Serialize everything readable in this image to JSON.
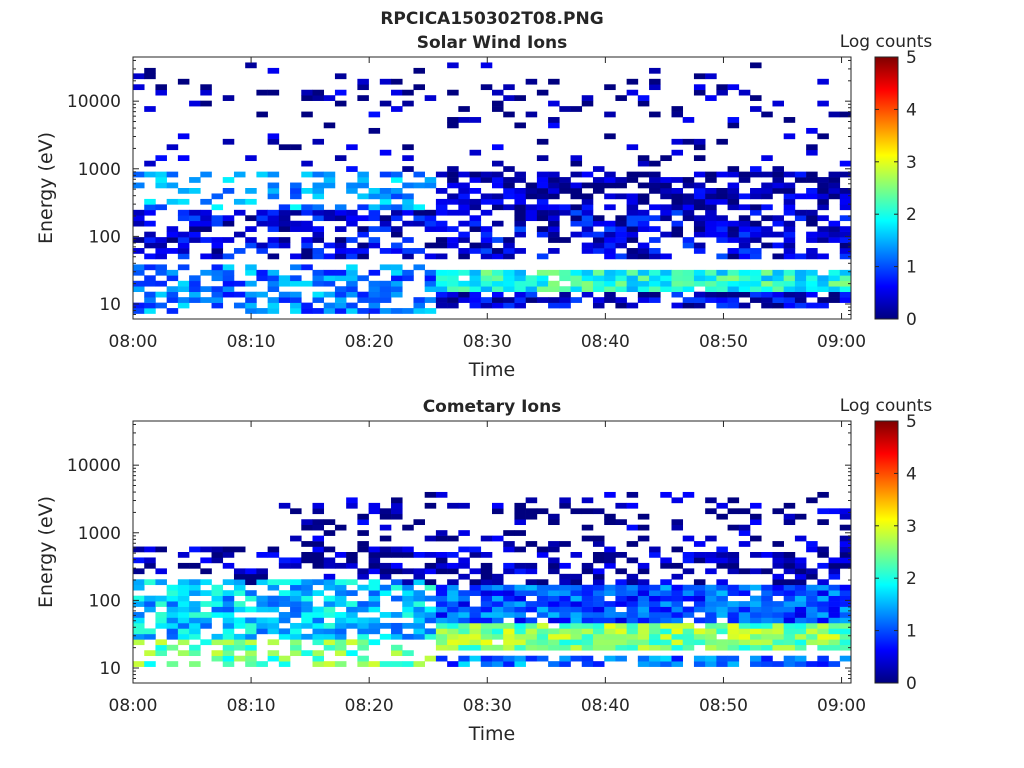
{
  "figure": {
    "suptitle": "RPCICA150302T08.PNG"
  },
  "colormap": {
    "name": "jet",
    "stops": [
      "#00007f",
      "#0000ff",
      "#007fff",
      "#00ffff",
      "#7fff7f",
      "#ffff00",
      "#ff7f00",
      "#ff0000",
      "#7f0000"
    ]
  },
  "chart_data": [
    {
      "type": "heatmap",
      "name": "solar-wind",
      "title": "Solar Wind Ions",
      "xlabel": "Time",
      "ylabel": "Energy (eV)",
      "xticks": [
        "08:00",
        "08:10",
        "08:20",
        "08:30",
        "08:40",
        "08:50",
        "09:00"
      ],
      "xlim_minutes": [
        0,
        60.8
      ],
      "yscale": "log",
      "ylim": [
        6,
        45000
      ],
      "yticks": [
        {
          "value": 10,
          "label": "10"
        },
        {
          "value": 100,
          "label": "100"
        },
        {
          "value": 1000,
          "label": "1000"
        },
        {
          "value": 10000,
          "label": "10000"
        }
      ],
      "colorbar": {
        "label": "Log counts",
        "limits": [
          0,
          5
        ],
        "ticks": [
          "0",
          "1",
          "2",
          "3",
          "4",
          "5"
        ]
      },
      "seed": 11,
      "bands": [
        {
          "t0": 0,
          "t1": 26,
          "e0": 7,
          "e1": 40,
          "v": 1.2,
          "p": 0.55
        },
        {
          "t0": 26,
          "t1": 61,
          "e0": 16,
          "e1": 32,
          "v": 2.0,
          "p": 0.95
        },
        {
          "t0": 26,
          "t1": 61,
          "e0": 9,
          "e1": 15,
          "v": 0.4,
          "p": 0.8
        },
        {
          "t0": 0,
          "t1": 61,
          "e0": 45,
          "e1": 250,
          "v": 0.45,
          "p": 0.6
        },
        {
          "t0": 0,
          "t1": 26,
          "e0": 250,
          "e1": 900,
          "v": 1.4,
          "p": 0.45
        },
        {
          "t0": 26,
          "t1": 61,
          "e0": 250,
          "e1": 900,
          "v": 0.2,
          "p": 0.7
        },
        {
          "t0": 0,
          "t1": 61,
          "e0": 900,
          "e1": 40000,
          "v": 0.15,
          "p": 0.13
        }
      ]
    },
    {
      "type": "heatmap",
      "name": "cometary",
      "title": "Cometary Ions",
      "xlabel": "Time",
      "ylabel": "Energy (eV)",
      "xticks": [
        "08:00",
        "08:10",
        "08:20",
        "08:30",
        "08:40",
        "08:50",
        "09:00"
      ],
      "xlim_minutes": [
        0,
        60.8
      ],
      "yscale": "log",
      "ylim": [
        6,
        45000
      ],
      "yticks": [
        {
          "value": 10,
          "label": "10"
        },
        {
          "value": 100,
          "label": "100"
        },
        {
          "value": 1000,
          "label": "1000"
        },
        {
          "value": 10000,
          "label": "10000"
        }
      ],
      "colorbar": {
        "label": "Log counts",
        "limits": [
          0,
          5
        ],
        "ticks": [
          "0",
          "1",
          "2",
          "3",
          "4",
          "5"
        ]
      },
      "seed": 29,
      "bands": [
        {
          "t0": 0,
          "t1": 26,
          "e0": 25,
          "e1": 200,
          "v": 1.6,
          "p": 0.7
        },
        {
          "t0": 0,
          "t1": 26,
          "e0": 10,
          "e1": 25,
          "v": 2.4,
          "p": 0.5
        },
        {
          "t0": 26,
          "t1": 61,
          "e0": 18,
          "e1": 45,
          "v": 2.5,
          "p": 0.95
        },
        {
          "t0": 26,
          "t1": 61,
          "e0": 45,
          "e1": 160,
          "v": 1.0,
          "p": 0.9
        },
        {
          "t0": 26,
          "t1": 61,
          "e0": 10,
          "e1": 16,
          "v": 1.2,
          "p": 0.7
        },
        {
          "t0": 0,
          "t1": 61,
          "e0": 160,
          "e1": 600,
          "v": 0.2,
          "p": 0.5
        },
        {
          "t0": 12,
          "t1": 61,
          "e0": 600,
          "e1": 4000,
          "v": 0.15,
          "p": 0.22
        }
      ]
    }
  ]
}
